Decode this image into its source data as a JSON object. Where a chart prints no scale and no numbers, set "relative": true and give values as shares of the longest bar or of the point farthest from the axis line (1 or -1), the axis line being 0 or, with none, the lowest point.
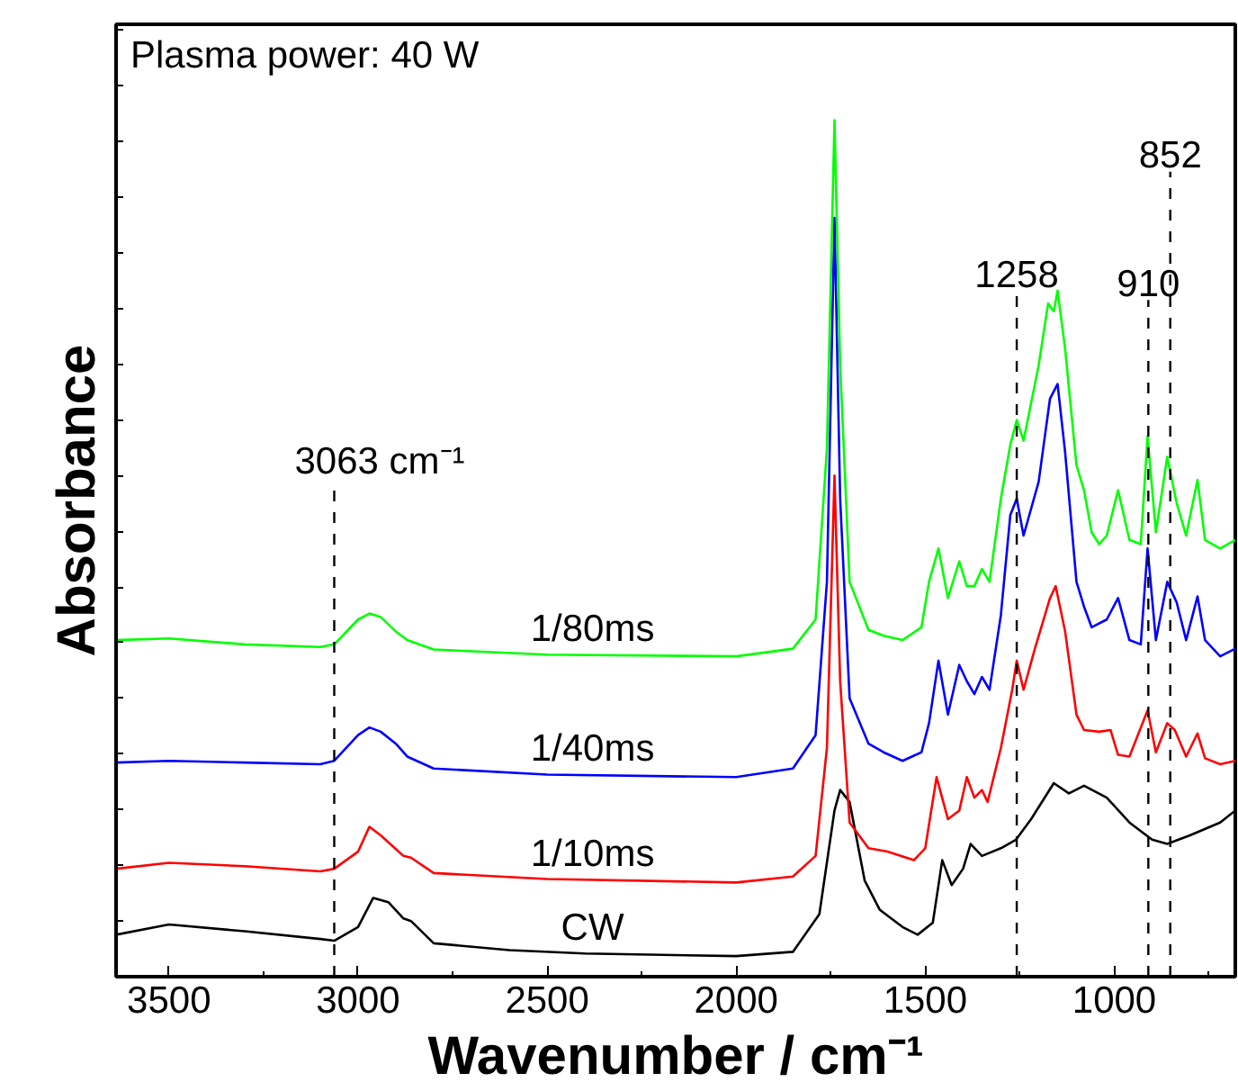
{
  "chart_data": {
    "type": "line",
    "relative": true,
    "xlabel": "Wavenumber / cm⁻¹",
    "ylabel": "Absorbance",
    "xlim": [
      3640,
      680
    ],
    "xticks": [
      3500,
      3000,
      2500,
      2000,
      1500,
      1000
    ],
    "annotations": [
      "Plasma power: 40 W"
    ],
    "ref_lines": [
      {
        "axis": "x",
        "value": 3063,
        "label": "3063 cm⁻¹",
        "line_style": "dashed",
        "color": "#000000"
      },
      {
        "axis": "x",
        "value": 1258,
        "label": "1258",
        "line_style": "dashed",
        "color": "#000000"
      },
      {
        "axis": "x",
        "value": 910,
        "label": "910",
        "line_style": "dashed",
        "color": "#000000"
      },
      {
        "axis": "x",
        "value": 852,
        "label": "852",
        "line_style": "dashed",
        "color": "#000000"
      }
    ],
    "grid": false,
    "marker": "none",
    "line_style": "solid",
    "series": [
      {
        "name": "CW",
        "color": "#000000",
        "x": [
          3640,
          3500,
          3300,
          3100,
          3063,
          3000,
          2960,
          2920,
          2880,
          2860,
          2800,
          2600,
          2400,
          2000,
          1850,
          1780,
          1740,
          1725,
          1700,
          1660,
          1620,
          1560,
          1520,
          1480,
          1455,
          1430,
          1400,
          1380,
          1350,
          1300,
          1260,
          1220,
          1160,
          1120,
          1080,
          1020,
          960,
          900,
          860,
          800,
          720,
          680
        ],
        "values": [
          0.049,
          0.061,
          0.053,
          0.044,
          0.042,
          0.058,
          0.092,
          0.087,
          0.068,
          0.065,
          0.039,
          0.031,
          0.027,
          0.024,
          0.029,
          0.073,
          0.194,
          0.218,
          0.204,
          0.112,
          0.078,
          0.058,
          0.049,
          0.063,
          0.136,
          0.107,
          0.126,
          0.155,
          0.141,
          0.15,
          0.16,
          0.184,
          0.226,
          0.214,
          0.223,
          0.209,
          0.18,
          0.16,
          0.155,
          0.165,
          0.18,
          0.194
        ]
      },
      {
        "name": "1/10ms",
        "color": "#ff0000",
        "x": [
          3640,
          3500,
          3300,
          3100,
          3063,
          3000,
          2970,
          2940,
          2900,
          2880,
          2860,
          2800,
          2500,
          2000,
          1850,
          1790,
          1760,
          1740,
          1725,
          1700,
          1650,
          1600,
          1530,
          1500,
          1470,
          1440,
          1410,
          1390,
          1370,
          1350,
          1335,
          1300,
          1270,
          1258,
          1240,
          1210,
          1170,
          1155,
          1130,
          1100,
          1080,
          1040,
          1010,
          990,
          960,
          912,
          890,
          860,
          840,
          810,
          780,
          760,
          720,
          680
        ],
        "values": [
          0.126,
          0.133,
          0.129,
          0.123,
          0.126,
          0.146,
          0.175,
          0.165,
          0.149,
          0.141,
          0.139,
          0.121,
          0.114,
          0.11,
          0.117,
          0.141,
          0.267,
          0.585,
          0.345,
          0.18,
          0.15,
          0.146,
          0.136,
          0.15,
          0.233,
          0.184,
          0.194,
          0.233,
          0.209,
          0.218,
          0.204,
          0.267,
          0.335,
          0.369,
          0.335,
          0.383,
          0.442,
          0.456,
          0.403,
          0.306,
          0.288,
          0.286,
          0.288,
          0.259,
          0.257,
          0.311,
          0.262,
          0.296,
          0.288,
          0.257,
          0.284,
          0.255,
          0.248,
          0.252
        ]
      },
      {
        "name": "1/40ms",
        "color": "#0000ff",
        "x": [
          3640,
          3500,
          3300,
          3100,
          3063,
          3000,
          2970,
          2940,
          2900,
          2870,
          2800,
          2500,
          2000,
          1850,
          1790,
          1760,
          1740,
          1725,
          1700,
          1650,
          1610,
          1560,
          1510,
          1490,
          1465,
          1440,
          1410,
          1390,
          1370,
          1350,
          1330,
          1300,
          1275,
          1258,
          1240,
          1200,
          1170,
          1150,
          1130,
          1100,
          1080,
          1060,
          1020,
          990,
          960,
          930,
          912,
          890,
          860,
          835,
          810,
          780,
          760,
          720,
          680
        ],
        "values": [
          0.25,
          0.252,
          0.25,
          0.248,
          0.252,
          0.282,
          0.291,
          0.286,
          0.272,
          0.257,
          0.243,
          0.236,
          0.233,
          0.243,
          0.282,
          0.461,
          0.886,
          0.558,
          0.325,
          0.272,
          0.262,
          0.252,
          0.262,
          0.296,
          0.369,
          0.306,
          0.364,
          0.345,
          0.33,
          0.35,
          0.335,
          0.422,
          0.539,
          0.558,
          0.515,
          0.578,
          0.675,
          0.692,
          0.612,
          0.461,
          0.432,
          0.408,
          0.417,
          0.442,
          0.393,
          0.388,
          0.5,
          0.393,
          0.461,
          0.437,
          0.393,
          0.444,
          0.393,
          0.374,
          0.383
        ]
      },
      {
        "name": "1/80ms",
        "color": "#00ff00",
        "x": [
          3640,
          3500,
          3300,
          3100,
          3063,
          3000,
          2970,
          2940,
          2900,
          2870,
          2800,
          2500,
          2000,
          1850,
          1790,
          1760,
          1740,
          1725,
          1700,
          1650,
          1610,
          1560,
          1510,
          1490,
          1465,
          1440,
          1410,
          1390,
          1370,
          1350,
          1330,
          1300,
          1275,
          1258,
          1240,
          1200,
          1175,
          1160,
          1150,
          1130,
          1100,
          1080,
          1060,
          1040,
          1020,
          990,
          960,
          930,
          912,
          890,
          860,
          835,
          810,
          780,
          760,
          720,
          680
        ],
        "values": [
          0.393,
          0.395,
          0.388,
          0.385,
          0.388,
          0.417,
          0.424,
          0.42,
          0.403,
          0.393,
          0.382,
          0.376,
          0.374,
          0.383,
          0.417,
          0.617,
          1,
          0.714,
          0.461,
          0.405,
          0.398,
          0.393,
          0.408,
          0.461,
          0.5,
          0.442,
          0.485,
          0.456,
          0.456,
          0.476,
          0.461,
          0.558,
          0.621,
          0.65,
          0.626,
          0.714,
          0.786,
          0.777,
          0.801,
          0.733,
          0.597,
          0.568,
          0.519,
          0.505,
          0.515,
          0.568,
          0.51,
          0.505,
          0.631,
          0.519,
          0.607,
          0.553,
          0.515,
          0.58,
          0.51,
          0.5,
          0.51
        ]
      }
    ]
  }
}
